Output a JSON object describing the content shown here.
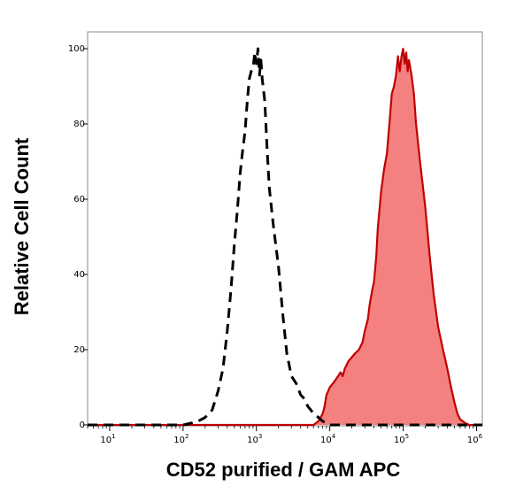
{
  "chart_data": {
    "type": "area",
    "title": "",
    "xlabel": "CD52 purified / GAM APC",
    "ylabel": "Relative Cell Count",
    "x_scale": "log",
    "xlim": [
      5,
      1200000
    ],
    "ylim": [
      0,
      103
    ],
    "grid": false,
    "x_ticks": [
      {
        "value": 10,
        "base": "10",
        "exp": "1"
      },
      {
        "value": 100,
        "base": "10",
        "exp": "2"
      },
      {
        "value": 1000,
        "base": "10",
        "exp": "3"
      },
      {
        "value": 10000,
        "base": "10",
        "exp": "4"
      },
      {
        "value": 100000,
        "base": "10",
        "exp": "5"
      },
      {
        "value": 1000000,
        "base": "10",
        "exp": "6"
      }
    ],
    "y_ticks": [
      {
        "value": 0,
        "label": "0"
      },
      {
        "value": 20,
        "label": "20"
      },
      {
        "value": 40,
        "label": "40"
      },
      {
        "value": 60,
        "label": "60"
      },
      {
        "value": 80,
        "label": "80"
      },
      {
        "value": 100,
        "label": "100"
      }
    ],
    "series": [
      {
        "style": "dashed",
        "fill": "none",
        "color": "#000000",
        "x": [
          5,
          100,
          130,
          160,
          200,
          250,
          300,
          350,
          400,
          450,
          500,
          550,
          600,
          650,
          700,
          750,
          800,
          850,
          900,
          950,
          1000,
          1050,
          1100,
          1150,
          1200,
          1300,
          1400,
          1500,
          1700,
          2000,
          2300,
          2600,
          3000,
          3500,
          4000,
          4500,
          5000,
          5500,
          6000,
          7000,
          8000,
          9000,
          10000,
          20000,
          1200000
        ],
        "y": [
          0,
          0,
          0.5,
          1,
          2,
          4,
          9,
          15,
          25,
          36,
          48,
          57,
          67,
          73,
          78,
          86,
          92,
          94,
          95,
          99,
          96,
          100,
          93,
          97,
          92,
          86,
          73,
          63,
          53,
          42,
          29,
          19,
          13,
          11,
          8,
          7,
          5,
          4,
          3,
          2,
          1,
          0.5,
          0,
          0,
          0
        ]
      },
      {
        "style": "solid",
        "fill": "#f48080",
        "color": "#c00000",
        "x": [
          5,
          6000,
          7000,
          7500,
          8000,
          8500,
          9000,
          9500,
          10000,
          11000,
          12000,
          13000,
          14000,
          15000,
          16000,
          18000,
          20000,
          22000,
          25000,
          28000,
          30000,
          33000,
          35000,
          38000,
          40000,
          43000,
          45000,
          48000,
          50000,
          55000,
          60000,
          65000,
          70000,
          75000,
          80000,
          85000,
          90000,
          95000,
          100000,
          105000,
          110000,
          115000,
          120000,
          130000,
          140000,
          150000,
          170000,
          200000,
          230000,
          260000,
          300000,
          350000,
          400000,
          450000,
          500000,
          550000,
          600000,
          700000,
          800000,
          1200000
        ],
        "y": [
          0,
          0,
          1,
          2,
          3,
          5,
          8,
          9,
          10,
          11,
          12,
          13,
          14,
          13,
          15,
          17,
          18,
          19,
          20,
          22,
          25,
          28,
          32,
          36,
          38,
          45,
          52,
          58,
          62,
          68,
          72,
          80,
          88,
          90,
          93,
          98,
          94,
          98,
          100,
          96,
          99,
          94,
          97,
          93,
          88,
          80,
          70,
          58,
          45,
          35,
          26,
          20,
          15,
          10,
          6,
          3,
          1.5,
          0.5,
          0,
          0
        ]
      }
    ]
  }
}
